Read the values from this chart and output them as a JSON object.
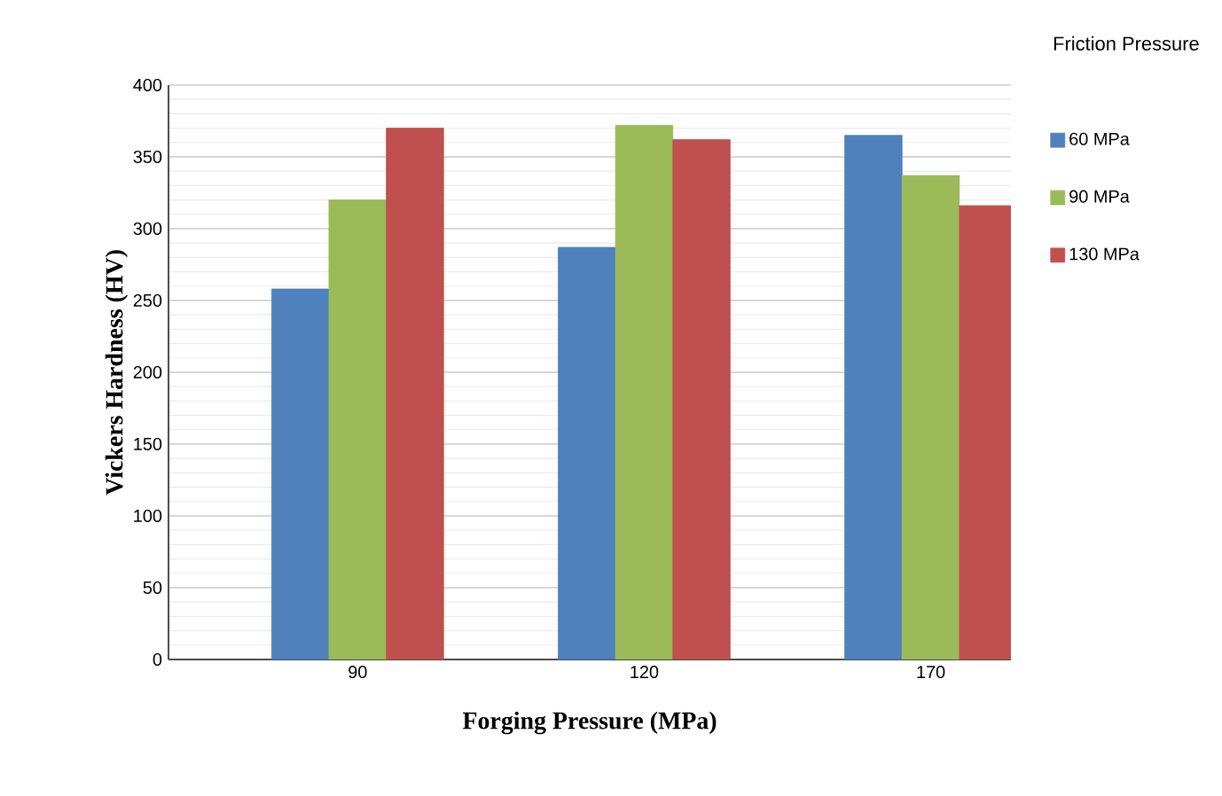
{
  "chart_data": {
    "type": "bar",
    "xlabel": "Forging Pressure (MPa)",
    "ylabel": "Vickers Hardness (HV)",
    "legend_title": "Friction Pressure",
    "categories": [
      "90",
      "120",
      "170"
    ],
    "series": [
      {
        "name": "60 MPa",
        "color": "#4f81bd",
        "values": [
          258,
          287,
          365
        ]
      },
      {
        "name": "90 MPa",
        "color": "#9bbb59",
        "values": [
          320,
          372,
          337
        ]
      },
      {
        "name": "130 MPa",
        "color": "#c0504d",
        "values": [
          370,
          362,
          316
        ]
      }
    ],
    "ylim": [
      0,
      400
    ],
    "yticks": [
      0,
      50,
      100,
      150,
      200,
      250,
      300,
      350,
      400
    ],
    "grid": true,
    "legend": "right"
  }
}
